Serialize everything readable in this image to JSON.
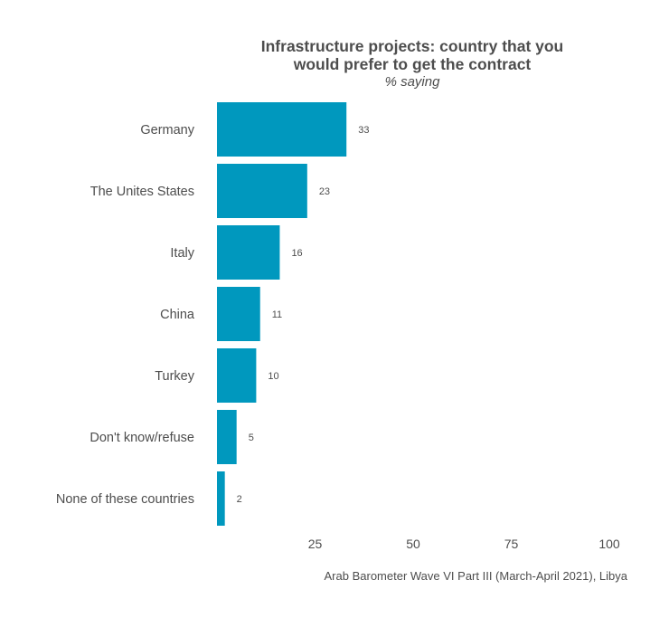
{
  "chart_data": {
    "type": "bar",
    "orientation": "horizontal",
    "title_line1": "Infrastructure projects: country that you",
    "title_line2": "would prefer to get the contract",
    "subtitle": "% saying",
    "categories": [
      "Germany",
      "The Unites States",
      "Italy",
      "China",
      "Turkey",
      "Don't know/refuse",
      "None of these countries"
    ],
    "values": [
      33,
      23,
      16,
      11,
      10,
      5,
      2
    ],
    "value_labels": [
      "33",
      "23",
      "16",
      "11",
      "10",
      "5",
      "2"
    ],
    "xlim": [
      0,
      100
    ],
    "xticks": [
      25,
      50,
      75,
      100
    ],
    "xtick_labels": [
      "25",
      "50",
      "75",
      "100"
    ],
    "grid": false,
    "legend": "none",
    "caption": "Arab Barometer Wave VI Part III (March-April 2021), Libya",
    "bar_color": "#0098be"
  }
}
